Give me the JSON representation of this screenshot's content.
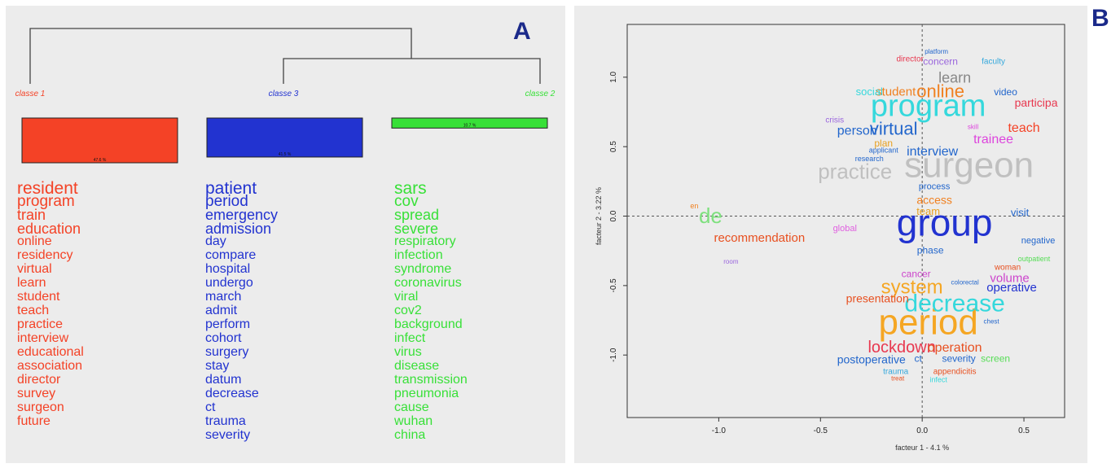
{
  "panel_labels": {
    "a": "A",
    "b": "B"
  },
  "colors": {
    "classe1": "#f44226",
    "classe3": "#2233d0",
    "classe2": "#38e038"
  },
  "chart_data": [
    {
      "type": "bar",
      "panel": "A",
      "chart_kind": "dendrogram with class proportion bars and word lists",
      "classes": [
        {
          "label": "classe 1",
          "color": "#f44226",
          "bar_label": "47.6 %",
          "percent": 47.6,
          "words": [
            "resident",
            "program",
            "train",
            "education",
            "online",
            "residency",
            "virtual",
            "learn",
            "student",
            "teach",
            "practice",
            "interview",
            "educational",
            "association",
            "director",
            "survey",
            "surgeon",
            "future"
          ]
        },
        {
          "label": "classe 3",
          "color": "#2233d0",
          "bar_label": "41.5 %",
          "percent": 41.5,
          "words": [
            "patient",
            "period",
            "emergency",
            "admission",
            "day",
            "compare",
            "hospital",
            "undergo",
            "march",
            "admit",
            "perform",
            "cohort",
            "surgery",
            "stay",
            "datum",
            "decrease",
            "ct",
            "trauma",
            "severity"
          ]
        },
        {
          "label": "classe 2",
          "color": "#38e038",
          "bar_label": "10.7 %",
          "percent": 10.7,
          "words": [
            "sars",
            "cov",
            "spread",
            "severe",
            "respiratory",
            "infection",
            "syndrome",
            "coronavirus",
            "viral",
            "cov2",
            "background",
            "infect",
            "virus",
            "disease",
            "transmission",
            "pneumonia",
            "cause",
            "wuhan",
            "china"
          ]
        }
      ],
      "dendrogram": {
        "root": "(classe 1, (classe 3, classe 2))"
      }
    },
    {
      "type": "scatter",
      "panel": "B",
      "chart_kind": "factorial correspondence analysis word map",
      "xlabel": "facteur 1 - 4.1 %",
      "ylabel": "facteur 2 - 3.22 %",
      "xlim": [
        -1.45,
        0.7
      ],
      "ylim": [
        -1.45,
        1.38
      ],
      "xticks": [
        "-1.0",
        "-0.5",
        "0.0",
        "0.5"
      ],
      "yticks": [
        "1.0",
        "0.5",
        "0.0",
        "-0.5",
        "-1.0"
      ],
      "reference_lines": "dashed lines at x=0 and y=0",
      "points": [
        {
          "w": "group",
          "x": 0.11,
          "y": -0.07,
          "s": 46,
          "c": "#2233d0"
        },
        {
          "w": "period",
          "x": 0.03,
          "y": -0.78,
          "s": 44,
          "c": "#f5a623"
        },
        {
          "w": "surgeon",
          "x": 0.23,
          "y": 0.35,
          "s": 44,
          "c": "#c0c0c0"
        },
        {
          "w": "program",
          "x": 0.03,
          "y": 0.78,
          "s": 38,
          "c": "#35d8dc"
        },
        {
          "w": "practice",
          "x": -0.33,
          "y": 0.31,
          "s": 26,
          "c": "#c0c0c0"
        },
        {
          "w": "decrease",
          "x": 0.16,
          "y": -0.64,
          "s": 30,
          "c": "#35d8dc"
        },
        {
          "w": "system",
          "x": -0.05,
          "y": -0.52,
          "s": 24,
          "c": "#f5a623"
        },
        {
          "w": "virtual",
          "x": -0.14,
          "y": 0.62,
          "s": 22,
          "c": "#2266cc"
        },
        {
          "w": "online",
          "x": 0.09,
          "y": 0.89,
          "s": 22,
          "c": "#f08020"
        },
        {
          "w": "lockdown",
          "x": -0.1,
          "y": -0.95,
          "s": 20,
          "c": "#e8384f"
        },
        {
          "w": "de",
          "x": -1.04,
          "y": -0.01,
          "s": 26,
          "c": "#7ee07e"
        },
        {
          "w": "person",
          "x": -0.32,
          "y": 0.61,
          "s": 16,
          "c": "#2266cc"
        },
        {
          "w": "learn",
          "x": 0.16,
          "y": 0.99,
          "s": 18,
          "c": "#888888"
        },
        {
          "w": "trainee",
          "x": 0.35,
          "y": 0.55,
          "s": 16,
          "c": "#dd44dd"
        },
        {
          "w": "teach",
          "x": 0.5,
          "y": 0.63,
          "s": 16,
          "c": "#f44226"
        },
        {
          "w": "participa",
          "x": 0.56,
          "y": 0.81,
          "s": 14,
          "c": "#e8384f"
        },
        {
          "w": "interview",
          "x": 0.05,
          "y": 0.46,
          "s": 16,
          "c": "#2266cc"
        },
        {
          "w": "recommendation",
          "x": -0.8,
          "y": -0.16,
          "s": 15,
          "c": "#e85020"
        },
        {
          "w": "operation",
          "x": 0.16,
          "y": -0.95,
          "s": 16,
          "c": "#e85020"
        },
        {
          "w": "operative",
          "x": 0.44,
          "y": -0.52,
          "s": 15,
          "c": "#2233d0"
        },
        {
          "w": "volume",
          "x": 0.43,
          "y": -0.45,
          "s": 15,
          "c": "#cc44cc"
        },
        {
          "w": "presentation",
          "x": -0.22,
          "y": -0.6,
          "s": 14,
          "c": "#e85020"
        },
        {
          "w": "postoperative",
          "x": -0.25,
          "y": -1.04,
          "s": 14,
          "c": "#2266cc"
        },
        {
          "w": "student",
          "x": -0.13,
          "y": 0.89,
          "s": 15,
          "c": "#f08020"
        },
        {
          "w": "concern",
          "x": 0.09,
          "y": 1.11,
          "s": 12,
          "c": "#9a66dd"
        },
        {
          "w": "access",
          "x": 0.06,
          "y": 0.11,
          "s": 14,
          "c": "#f08020"
        },
        {
          "w": "team",
          "x": 0.03,
          "y": 0.03,
          "s": 13,
          "c": "#e8a020"
        },
        {
          "w": "social",
          "x": -0.26,
          "y": 0.89,
          "s": 13,
          "c": "#35d8dc"
        },
        {
          "w": "video",
          "x": 0.41,
          "y": 0.89,
          "s": 12,
          "c": "#2266cc"
        },
        {
          "w": "plan",
          "x": -0.19,
          "y": 0.52,
          "s": 12,
          "c": "#e8a020"
        },
        {
          "w": "crisis",
          "x": -0.43,
          "y": 0.69,
          "s": 10,
          "c": "#9a66dd"
        },
        {
          "w": "faculty",
          "x": 0.35,
          "y": 1.11,
          "s": 10,
          "c": "#35a8dc"
        },
        {
          "w": "director",
          "x": -0.06,
          "y": 1.13,
          "s": 10,
          "c": "#e8384f"
        },
        {
          "w": "platform",
          "x": 0.07,
          "y": 1.18,
          "s": 8,
          "c": "#2266cc"
        },
        {
          "w": "research",
          "x": -0.26,
          "y": 0.41,
          "s": 9,
          "c": "#2266cc"
        },
        {
          "w": "applicant",
          "x": -0.19,
          "y": 0.47,
          "s": 9,
          "c": "#2266cc"
        },
        {
          "w": "skill",
          "x": 0.25,
          "y": 0.64,
          "s": 8,
          "c": "#dd44dd"
        },
        {
          "w": "process",
          "x": 0.06,
          "y": 0.21,
          "s": 11,
          "c": "#2266cc"
        },
        {
          "w": "visit",
          "x": 0.48,
          "y": 0.02,
          "s": 13,
          "c": "#2266cc"
        },
        {
          "w": "global",
          "x": -0.38,
          "y": -0.09,
          "s": 11,
          "c": "#e060e0"
        },
        {
          "w": "phase",
          "x": 0.04,
          "y": -0.25,
          "s": 12,
          "c": "#2266cc"
        },
        {
          "w": "cancer",
          "x": -0.03,
          "y": -0.42,
          "s": 12,
          "c": "#cc44cc"
        },
        {
          "w": "woman",
          "x": 0.42,
          "y": -0.37,
          "s": 10,
          "c": "#e85020"
        },
        {
          "w": "negative",
          "x": 0.57,
          "y": -0.18,
          "s": 11,
          "c": "#2266cc"
        },
        {
          "w": "outpatient",
          "x": 0.55,
          "y": -0.31,
          "s": 9,
          "c": "#55dd55"
        },
        {
          "w": "screen",
          "x": 0.36,
          "y": -1.03,
          "s": 12,
          "c": "#55dd55"
        },
        {
          "w": "severity",
          "x": 0.18,
          "y": -1.03,
          "s": 12,
          "c": "#2266cc"
        },
        {
          "w": "ct",
          "x": -0.02,
          "y": -1.03,
          "s": 12,
          "c": "#2266cc"
        },
        {
          "w": "appendicitis",
          "x": 0.16,
          "y": -1.12,
          "s": 10,
          "c": "#e85020"
        },
        {
          "w": "trauma",
          "x": -0.13,
          "y": -1.12,
          "s": 10,
          "c": "#35a8dc"
        },
        {
          "w": "infect",
          "x": 0.08,
          "y": -1.18,
          "s": 9,
          "c": "#35d8dc"
        },
        {
          "w": "treat",
          "x": -0.12,
          "y": -1.17,
          "s": 8,
          "c": "#e85020"
        },
        {
          "w": "chest",
          "x": 0.34,
          "y": -0.76,
          "s": 8,
          "c": "#2266cc"
        },
        {
          "w": "colorectal",
          "x": 0.21,
          "y": -0.48,
          "s": 8,
          "c": "#2266cc"
        },
        {
          "w": "en",
          "x": -1.12,
          "y": 0.07,
          "s": 9,
          "c": "#f08020"
        },
        {
          "w": "room",
          "x": -0.94,
          "y": -0.33,
          "s": 8,
          "c": "#9a66dd"
        }
      ]
    }
  ]
}
